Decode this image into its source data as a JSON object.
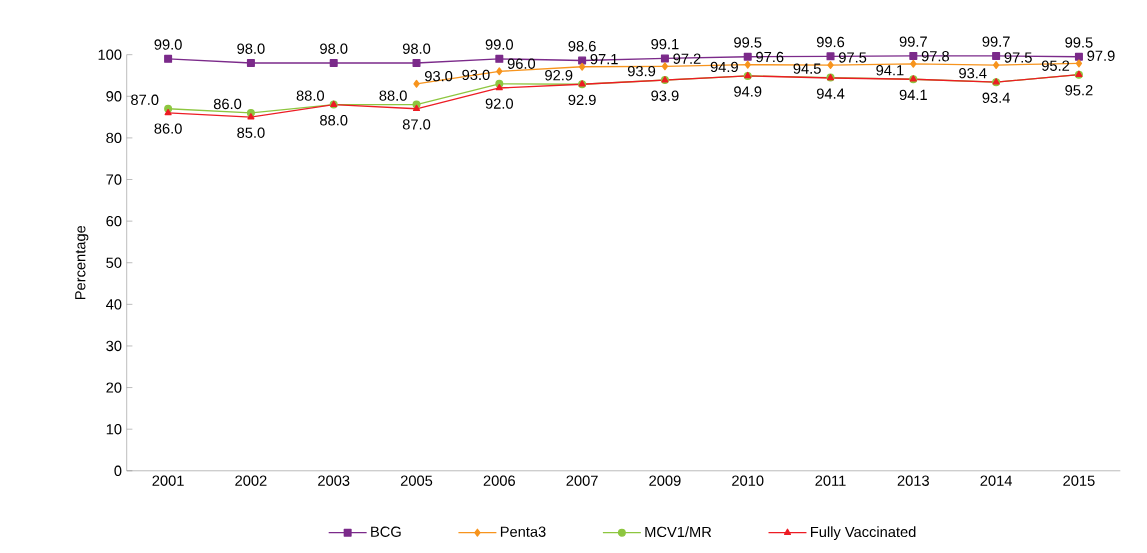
{
  "chart_data": {
    "type": "line",
    "ylabel": "Percentage",
    "categories": [
      "2001",
      "2002",
      "2003",
      "2005",
      "2006",
      "2007",
      "2009",
      "2010",
      "2011",
      "2013",
      "2014",
      "2015"
    ],
    "series": [
      {
        "name": "BCG",
        "color": "#7b2a8a",
        "marker": "square",
        "values": [
          99.0,
          98.0,
          98.0,
          98.0,
          99.0,
          98.6,
          99.1,
          99.5,
          99.6,
          99.7,
          99.7,
          99.5
        ],
        "value_labels": [
          "99.0",
          "98.0",
          "98.0",
          "98.0",
          "99.0",
          "98.6",
          "99.1",
          "99.5",
          "99.6",
          "99.7",
          "99.7",
          "99.5"
        ]
      },
      {
        "name": "Penta3",
        "color": "#f7941d",
        "marker": "diamond",
        "values": [
          null,
          null,
          null,
          93.0,
          96.0,
          97.1,
          97.2,
          97.6,
          97.5,
          97.8,
          97.5,
          97.9
        ],
        "value_labels": [
          null,
          null,
          null,
          "93.0",
          "96.0",
          "97.1",
          "97.2",
          "97.6",
          "97.5",
          "97.8",
          "97.5",
          "97.9"
        ]
      },
      {
        "name": "MCV1/MR",
        "color": "#8dc63f",
        "marker": "circle",
        "values": [
          87.0,
          86.0,
          88.0,
          88.0,
          93.0,
          92.9,
          93.9,
          94.9,
          94.5,
          94.1,
          93.4,
          95.2
        ],
        "value_labels": [
          "87.0",
          "86.0",
          "88.0",
          "88.0",
          "93.0",
          "92.9",
          "93.9",
          "94.9",
          "94.5",
          "94.1",
          "93.4",
          "95.2"
        ]
      },
      {
        "name": "Fully Vaccinated",
        "color": "#ed1c24",
        "marker": "triangle",
        "values": [
          86.0,
          85.0,
          88.0,
          87.0,
          92.0,
          92.9,
          93.9,
          94.9,
          94.4,
          94.1,
          93.4,
          95.2
        ],
        "value_labels": [
          "86.0",
          "85.0",
          "88.0",
          "87.0",
          "92.0",
          "92.9",
          "93.9",
          "94.9",
          "94.4",
          "94.1",
          "93.4",
          "95.2"
        ]
      }
    ],
    "ylim": [
      0,
      100
    ],
    "yticks": [
      0,
      10,
      20,
      30,
      40,
      50,
      60,
      70,
      80,
      90,
      100
    ],
    "grid": false,
    "legend": "bottom",
    "line_style": "solid"
  }
}
